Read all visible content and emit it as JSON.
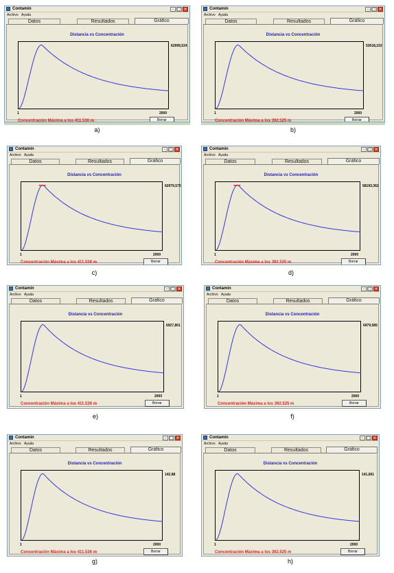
{
  "panels": [
    {
      "caption": "a)",
      "title": "Contamin",
      "menus": [
        "Archivo",
        "Ayuda"
      ],
      "tabs": [
        "Datos",
        "Resultados",
        "Gráfico"
      ],
      "chart_title": "Distancia vs Concentración",
      "ymax": "62999,524",
      "x_min": "1",
      "x_max": "2000",
      "status": "Concentración Máxima a los  411.536 m",
      "button": "Borrar",
      "highlight_peak": false
    },
    {
      "caption": "b)",
      "title": "Contamin",
      "menus": [
        "Archivo",
        "Ayuda"
      ],
      "tabs": [
        "Datos",
        "Resultados",
        "Gráfico"
      ],
      "chart_title": "Distancia vs Concentración",
      "ymax": "53018,153",
      "x_min": "1",
      "x_max": "2000",
      "status": "Concentración Máxima a los  392.525 m",
      "button": "Borrar",
      "highlight_peak": false
    },
    {
      "caption": "c)",
      "title": "Contamin",
      "menus": [
        "Archivo",
        "Ayuda"
      ],
      "tabs": [
        "Datos",
        "Resultados",
        "Gráfico"
      ],
      "chart_title": "Distancia vs Concentración",
      "ymax": "62979,575",
      "x_min": "1",
      "x_max": "2000",
      "status": "Concentración Máxima a los  411.536 m",
      "button": "Borrar",
      "highlight_peak": true
    },
    {
      "caption": "d)",
      "title": "Contamin",
      "menus": [
        "Archivo",
        "Ayuda"
      ],
      "tabs": [
        "Datos",
        "Resultados",
        "Gráfico"
      ],
      "chart_title": "Distancia vs Concentración",
      "ymax": "58193,362",
      "x_min": "1",
      "x_max": "2000",
      "status": "Concentración Máxima a los  392.525 m",
      "button": "Borrar",
      "highlight_peak": true
    },
    {
      "caption": "e)",
      "title": "Contamin",
      "menus": [
        "Archivo",
        "Ayuda"
      ],
      "tabs": [
        "Datos",
        "Resultados",
        "Gráfico"
      ],
      "chart_title": "Distancia vs Concentración",
      "ymax": "6927,801",
      "x_min": "1",
      "x_max": "2000",
      "status": "Concentración Máxima a los  411.536 m",
      "button": "Borrar",
      "highlight_peak": false
    },
    {
      "caption": "f)",
      "title": "Contamin",
      "menus": [
        "Archivo",
        "Ayuda"
      ],
      "tabs": [
        "Datos",
        "Resultados",
        "Gráfico"
      ],
      "chart_title": "Distancia vs Concentración",
      "ymax": "6979,585",
      "x_min": "1",
      "x_max": "2000",
      "status": "Concentración Máxima a los  392.525 m",
      "button": "Borrar",
      "highlight_peak": false
    },
    {
      "caption": "g)",
      "title": "Contamin",
      "menus": [
        "Archivo",
        "Ayuda"
      ],
      "tabs": [
        "Datos",
        "Resultados",
        "Gráfico"
      ],
      "chart_title": "Distancia vs Concentración",
      "ymax": "142,88",
      "x_min": "1",
      "x_max": "2000",
      "status": "Concentración Máxima a los  411.536 m",
      "button": "Borrar",
      "highlight_peak": false
    },
    {
      "caption": "h)",
      "title": "Contamin",
      "menus": [
        "Archivo",
        "Ayuda"
      ],
      "tabs": [
        "Datos",
        "Resultados",
        "Gráfico"
      ],
      "chart_title": "Distancia vs Concentración",
      "ymax": "141,661",
      "x_min": "1",
      "x_max": "2000",
      "status": "Concentración Máxima a los  392.525 m",
      "button": "Borrar",
      "highlight_peak": false
    }
  ],
  "colors": {
    "curve": "#3333dd",
    "peak_highlight": "#e02020",
    "chart_title": "#2323a8",
    "status_text": "#e02020"
  }
}
